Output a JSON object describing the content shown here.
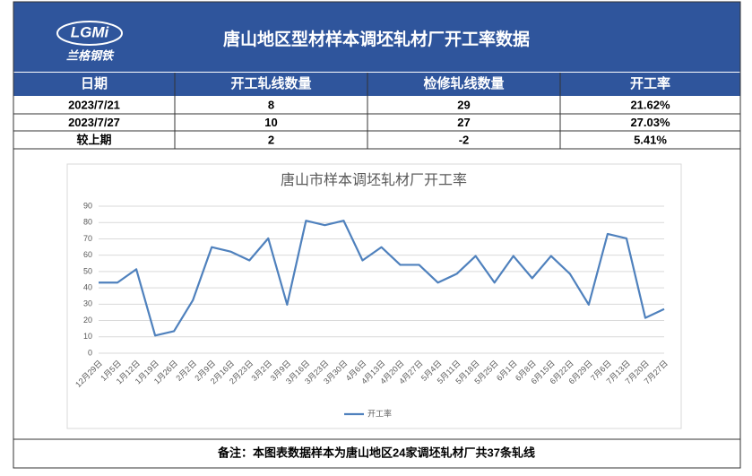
{
  "header": {
    "logo_text": "LGMi",
    "logo_subtitle": "兰格钢铁",
    "title": "唐山地区型材样本调坯轧材厂开工率数据"
  },
  "table": {
    "columns": [
      "日期",
      "开工轧线数量",
      "检修轧线数量",
      "开工率"
    ],
    "rows": [
      [
        "2023/7/21",
        "8",
        "29",
        "21.62%"
      ],
      [
        "2023/7/27",
        "10",
        "27",
        "27.03%"
      ],
      [
        "较上期",
        "2",
        "-2",
        "5.41%"
      ]
    ]
  },
  "chart_data": {
    "type": "line",
    "title": "唐山市样本调坯轧材厂开工率",
    "categories": [
      "12月29日",
      "1月5日",
      "1月12日",
      "1月19日",
      "1月26日",
      "2月2日",
      "2月9日",
      "2月16日",
      "2月23日",
      "3月2日",
      "3月9日",
      "3月16日",
      "3月23日",
      "3月30日",
      "4月6日",
      "4月13日",
      "4月20日",
      "4月27日",
      "5月4日",
      "5月11日",
      "5月18日",
      "5月25日",
      "6月1日",
      "6月8日",
      "6月15日",
      "6月22日",
      "6月29日",
      "7月6日",
      "7月13日",
      "7月20日",
      "7月27日"
    ],
    "series": [
      {
        "name": "开工率",
        "color": "#4f81bd",
        "values": [
          43.2,
          43.2,
          51.4,
          10.8,
          13.5,
          32.4,
          64.9,
          62.2,
          56.8,
          70.3,
          29.7,
          81.1,
          78.4,
          81.1,
          56.8,
          64.9,
          54.1,
          54.1,
          43.2,
          48.6,
          59.5,
          43.2,
          59.5,
          45.9,
          59.5,
          48.6,
          29.7,
          73.0,
          70.3,
          21.62,
          27.03
        ]
      }
    ],
    "ylim": [
      0,
      90
    ],
    "yticks": [
      0,
      10,
      20,
      30,
      40,
      50,
      60,
      70,
      80,
      90
    ],
    "grid": true,
    "legend": "bottom"
  },
  "footer": {
    "note": "备注：本图表数据样本为唐山地区24家调坯轧材厂共37条轧线"
  }
}
